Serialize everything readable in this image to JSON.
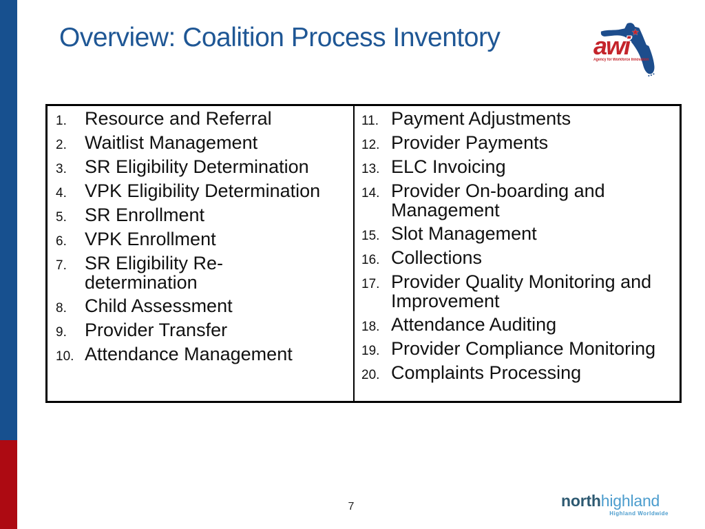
{
  "header": {
    "title": "Overview: Coalition Process Inventory"
  },
  "awi_logo": {
    "acronym": "awi",
    "star": "★",
    "tagline": "Agency for Workforce Innovation"
  },
  "process_table": {
    "columns": [
      {
        "items": [
          {
            "num": "1.",
            "text": "Resource and Referral"
          },
          {
            "num": "2.",
            "text": "Waitlist Management"
          },
          {
            "num": "3.",
            "text": "SR Eligibility Determination"
          },
          {
            "num": "4.",
            "text": "VPK Eligibility Determination"
          },
          {
            "num": "5.",
            "text": "SR Enrollment"
          },
          {
            "num": "6.",
            "text": "VPK Enrollment"
          },
          {
            "num": "7.",
            "text": "SR Eligibility Re-determination"
          },
          {
            "num": "8.",
            "text": "Child Assessment"
          },
          {
            "num": "9.",
            "text": "Provider Transfer"
          },
          {
            "num": "10.",
            "text": "Attendance Management"
          }
        ]
      },
      {
        "items": [
          {
            "num": "11.",
            "text": "Payment Adjustments"
          },
          {
            "num": "12.",
            "text": "Provider Payments"
          },
          {
            "num": "13.",
            "text": "ELC Invoicing"
          },
          {
            "num": "14.",
            "text": "Provider On-boarding and Management"
          },
          {
            "num": "15.",
            "text": "Slot Management"
          },
          {
            "num": "16.",
            "text": "Collections"
          },
          {
            "num": "17.",
            "text": "Provider Quality Monitoring and Improvement"
          },
          {
            "num": "18.",
            "text": "Attendance Auditing"
          },
          {
            "num": "19.",
            "text": "Provider Compliance Monitoring"
          },
          {
            "num": "20.",
            "text": "Complaints Processing"
          }
        ]
      }
    ]
  },
  "footer": {
    "page_number": "7",
    "brand": {
      "bold": "north",
      "light": "highland",
      "tagline": "Highland Worldwide"
    }
  },
  "colors": {
    "bar_blue": "#17508f",
    "bar_red": "#ad0a12",
    "title_blue": "#1f5795",
    "florida_blue": "#1d4d8c",
    "awi_red": "#c4242b",
    "nh_dark": "#2d5971",
    "nh_light": "#4b9ccd",
    "table_border": "#000000",
    "list_text": "#111111"
  }
}
